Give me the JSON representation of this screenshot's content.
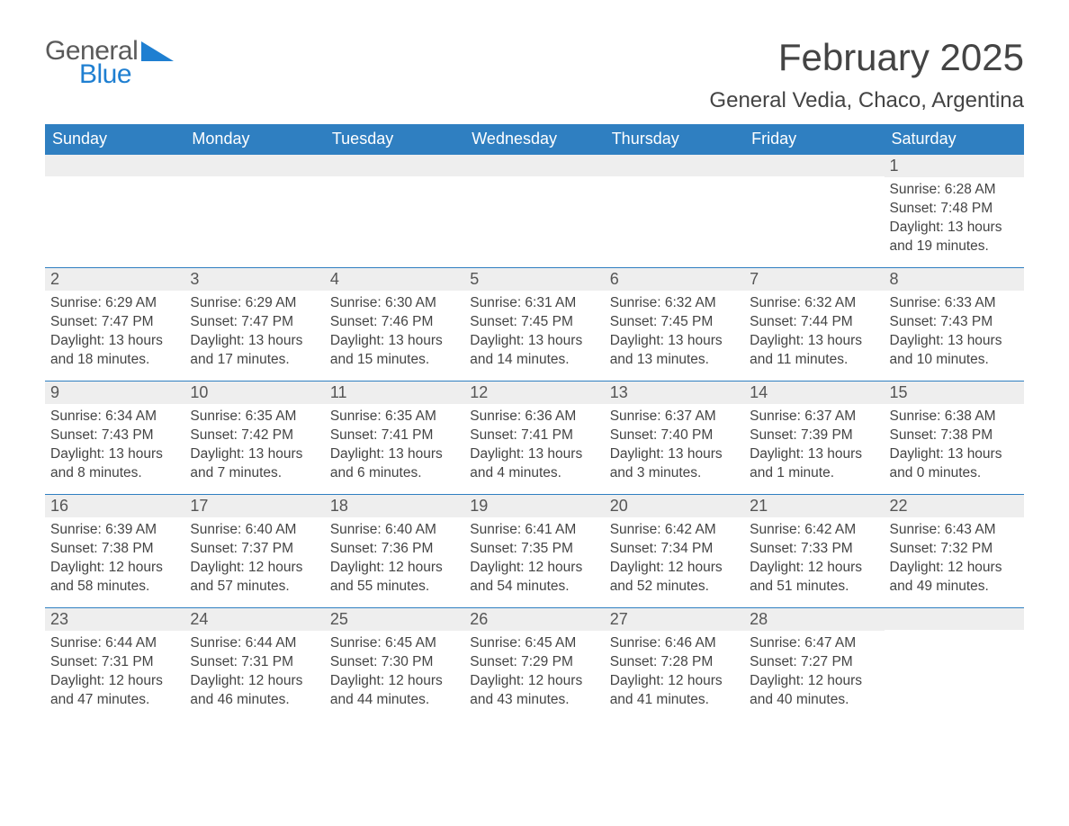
{
  "logo": {
    "word1": "General",
    "word2": "Blue",
    "primary_color": "#1f7fd1",
    "text_color": "#5a5a5a"
  },
  "header": {
    "month_title": "February 2025",
    "location": "General Vedia, Chaco, Argentina"
  },
  "calendar": {
    "type": "calendar-grid",
    "header_bg": "#2f7fc1",
    "header_fg": "#ffffff",
    "daynum_bg": "#eeeeee",
    "row_border": "#2f7fc1",
    "day_headers": [
      "Sunday",
      "Monday",
      "Tuesday",
      "Wednesday",
      "Thursday",
      "Friday",
      "Saturday"
    ],
    "weeks": [
      [
        null,
        null,
        null,
        null,
        null,
        null,
        {
          "n": "1",
          "sunrise": "Sunrise: 6:28 AM",
          "sunset": "Sunset: 7:48 PM",
          "daylight": "Daylight: 13 hours and 19 minutes."
        }
      ],
      [
        {
          "n": "2",
          "sunrise": "Sunrise: 6:29 AM",
          "sunset": "Sunset: 7:47 PM",
          "daylight": "Daylight: 13 hours and 18 minutes."
        },
        {
          "n": "3",
          "sunrise": "Sunrise: 6:29 AM",
          "sunset": "Sunset: 7:47 PM",
          "daylight": "Daylight: 13 hours and 17 minutes."
        },
        {
          "n": "4",
          "sunrise": "Sunrise: 6:30 AM",
          "sunset": "Sunset: 7:46 PM",
          "daylight": "Daylight: 13 hours and 15 minutes."
        },
        {
          "n": "5",
          "sunrise": "Sunrise: 6:31 AM",
          "sunset": "Sunset: 7:45 PM",
          "daylight": "Daylight: 13 hours and 14 minutes."
        },
        {
          "n": "6",
          "sunrise": "Sunrise: 6:32 AM",
          "sunset": "Sunset: 7:45 PM",
          "daylight": "Daylight: 13 hours and 13 minutes."
        },
        {
          "n": "7",
          "sunrise": "Sunrise: 6:32 AM",
          "sunset": "Sunset: 7:44 PM",
          "daylight": "Daylight: 13 hours and 11 minutes."
        },
        {
          "n": "8",
          "sunrise": "Sunrise: 6:33 AM",
          "sunset": "Sunset: 7:43 PM",
          "daylight": "Daylight: 13 hours and 10 minutes."
        }
      ],
      [
        {
          "n": "9",
          "sunrise": "Sunrise: 6:34 AM",
          "sunset": "Sunset: 7:43 PM",
          "daylight": "Daylight: 13 hours and 8 minutes."
        },
        {
          "n": "10",
          "sunrise": "Sunrise: 6:35 AM",
          "sunset": "Sunset: 7:42 PM",
          "daylight": "Daylight: 13 hours and 7 minutes."
        },
        {
          "n": "11",
          "sunrise": "Sunrise: 6:35 AM",
          "sunset": "Sunset: 7:41 PM",
          "daylight": "Daylight: 13 hours and 6 minutes."
        },
        {
          "n": "12",
          "sunrise": "Sunrise: 6:36 AM",
          "sunset": "Sunset: 7:41 PM",
          "daylight": "Daylight: 13 hours and 4 minutes."
        },
        {
          "n": "13",
          "sunrise": "Sunrise: 6:37 AM",
          "sunset": "Sunset: 7:40 PM",
          "daylight": "Daylight: 13 hours and 3 minutes."
        },
        {
          "n": "14",
          "sunrise": "Sunrise: 6:37 AM",
          "sunset": "Sunset: 7:39 PM",
          "daylight": "Daylight: 13 hours and 1 minute."
        },
        {
          "n": "15",
          "sunrise": "Sunrise: 6:38 AM",
          "sunset": "Sunset: 7:38 PM",
          "daylight": "Daylight: 13 hours and 0 minutes."
        }
      ],
      [
        {
          "n": "16",
          "sunrise": "Sunrise: 6:39 AM",
          "sunset": "Sunset: 7:38 PM",
          "daylight": "Daylight: 12 hours and 58 minutes."
        },
        {
          "n": "17",
          "sunrise": "Sunrise: 6:40 AM",
          "sunset": "Sunset: 7:37 PM",
          "daylight": "Daylight: 12 hours and 57 minutes."
        },
        {
          "n": "18",
          "sunrise": "Sunrise: 6:40 AM",
          "sunset": "Sunset: 7:36 PM",
          "daylight": "Daylight: 12 hours and 55 minutes."
        },
        {
          "n": "19",
          "sunrise": "Sunrise: 6:41 AM",
          "sunset": "Sunset: 7:35 PM",
          "daylight": "Daylight: 12 hours and 54 minutes."
        },
        {
          "n": "20",
          "sunrise": "Sunrise: 6:42 AM",
          "sunset": "Sunset: 7:34 PM",
          "daylight": "Daylight: 12 hours and 52 minutes."
        },
        {
          "n": "21",
          "sunrise": "Sunrise: 6:42 AM",
          "sunset": "Sunset: 7:33 PM",
          "daylight": "Daylight: 12 hours and 51 minutes."
        },
        {
          "n": "22",
          "sunrise": "Sunrise: 6:43 AM",
          "sunset": "Sunset: 7:32 PM",
          "daylight": "Daylight: 12 hours and 49 minutes."
        }
      ],
      [
        {
          "n": "23",
          "sunrise": "Sunrise: 6:44 AM",
          "sunset": "Sunset: 7:31 PM",
          "daylight": "Daylight: 12 hours and 47 minutes."
        },
        {
          "n": "24",
          "sunrise": "Sunrise: 6:44 AM",
          "sunset": "Sunset: 7:31 PM",
          "daylight": "Daylight: 12 hours and 46 minutes."
        },
        {
          "n": "25",
          "sunrise": "Sunrise: 6:45 AM",
          "sunset": "Sunset: 7:30 PM",
          "daylight": "Daylight: 12 hours and 44 minutes."
        },
        {
          "n": "26",
          "sunrise": "Sunrise: 6:45 AM",
          "sunset": "Sunset: 7:29 PM",
          "daylight": "Daylight: 12 hours and 43 minutes."
        },
        {
          "n": "27",
          "sunrise": "Sunrise: 6:46 AM",
          "sunset": "Sunset: 7:28 PM",
          "daylight": "Daylight: 12 hours and 41 minutes."
        },
        {
          "n": "28",
          "sunrise": "Sunrise: 6:47 AM",
          "sunset": "Sunset: 7:27 PM",
          "daylight": "Daylight: 12 hours and 40 minutes."
        },
        null
      ]
    ]
  }
}
